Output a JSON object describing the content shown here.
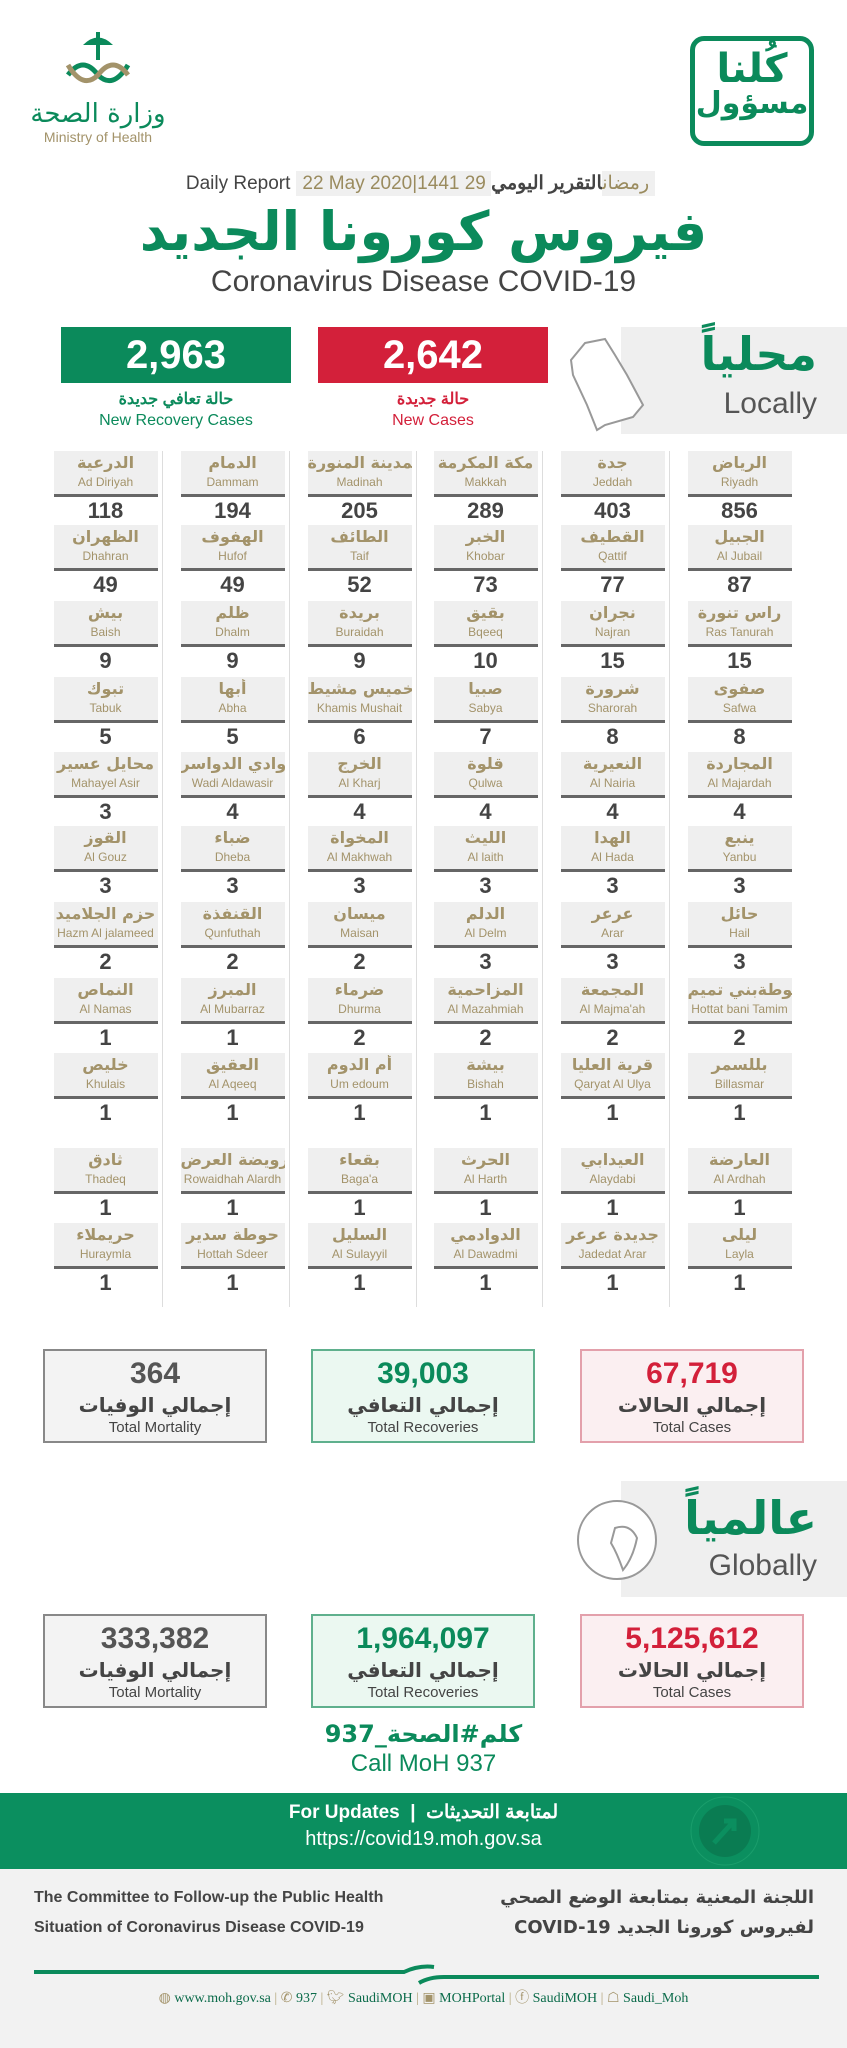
{
  "logos": {
    "moh_ar": "وزارة الصحة",
    "moh_en": "Ministry of Health",
    "kulna_1": "كُلنا",
    "kulna_2": "مسؤول"
  },
  "header": {
    "daily_en": "Daily Report",
    "date": "22 May 2020|1441 29 رمضان",
    "daily_ar": "التقرير اليومي",
    "title_ar": "فيروس كورونا الجديد",
    "title_en": "Coronavirus Disease COVID-19"
  },
  "local": {
    "label_ar": "محلياً",
    "label_en": "Locally",
    "new_recoveries": "2,963",
    "new_recoveries_ar": "حالة تعافي جديدة",
    "new_recoveries_en": "New Recovery Cases",
    "new_cases": "2,642",
    "new_cases_ar": "حالة جديدة",
    "new_cases_en": "New Cases",
    "rows": [
      [
        [
          "الرياض",
          "Riyadh",
          "856"
        ],
        [
          "جدة",
          "Jeddah",
          "403"
        ],
        [
          "مكة المكرمة",
          "Makkah",
          "289"
        ],
        [
          "المدينة المنورة",
          "Madinah",
          "205"
        ],
        [
          "الدمام",
          "Dammam",
          "194"
        ],
        [
          "الدرعية",
          "Ad Diriyah",
          "118"
        ]
      ],
      [
        [
          "الجبيل",
          "Al Jubail",
          "87"
        ],
        [
          "القطيف",
          "Qattif",
          "77"
        ],
        [
          "الخبر",
          "Khobar",
          "73"
        ],
        [
          "الطائف",
          "Taif",
          "52"
        ],
        [
          "الهفوف",
          "Hufof",
          "49"
        ],
        [
          "الظهران",
          "Dhahran",
          "49"
        ]
      ],
      [
        [
          "راس تنورة",
          "Ras Tanurah",
          "15"
        ],
        [
          "نجران",
          "Najran",
          "15"
        ],
        [
          "بقيق",
          "Bqeeq",
          "10"
        ],
        [
          "بريدة",
          "Buraidah",
          "9"
        ],
        [
          "ظلم",
          "Dhalm",
          "9"
        ],
        [
          "بيش",
          "Baish",
          "9"
        ]
      ],
      [
        [
          "صفوى",
          "Safwa",
          "8"
        ],
        [
          "شرورة",
          "Sharorah",
          "8"
        ],
        [
          "صبيا",
          "Sabya",
          "7"
        ],
        [
          "خميس مشيط",
          "Khamis Mushait",
          "6"
        ],
        [
          "أبها",
          "Abha",
          "5"
        ],
        [
          "تبوك",
          "Tabuk",
          "5"
        ]
      ],
      [
        [
          "المجاردة",
          "Al Majardah",
          "4"
        ],
        [
          "النعيرية",
          "Al Nairia",
          "4"
        ],
        [
          "قلوة",
          "Qulwa",
          "4"
        ],
        [
          "الخرج",
          "Al Kharj",
          "4"
        ],
        [
          "وادي الدواسر",
          "Wadi Aldawasir",
          "4"
        ],
        [
          "محايل عسير",
          "Mahayel Asir",
          "3"
        ]
      ],
      [
        [
          "ينبع",
          "Yanbu",
          "3"
        ],
        [
          "الهدا",
          "Al Hada",
          "3"
        ],
        [
          "الليث",
          "Al laith",
          "3"
        ],
        [
          "المخواة",
          "Al Makhwah",
          "3"
        ],
        [
          "ضباء",
          "Dheba",
          "3"
        ],
        [
          "القوز",
          "Al Gouz",
          "3"
        ]
      ],
      [
        [
          "حائل",
          "Hail",
          "3"
        ],
        [
          "عرعر",
          "Arar",
          "3"
        ],
        [
          "الدلم",
          "Al Delm",
          "3"
        ],
        [
          "ميسان",
          "Maisan",
          "2"
        ],
        [
          "القنفذة",
          "Qunfuthah",
          "2"
        ],
        [
          "حزم الجلاميد",
          "Hazm Al jalameed",
          "2"
        ]
      ],
      [
        [
          "حوطةبني تميم",
          "Hottat bani Tamim",
          "2"
        ],
        [
          "المجمعة",
          "Al Majma'ah",
          "2"
        ],
        [
          "المزاحمية",
          "Al Mazahmiah",
          "2"
        ],
        [
          "ضرماء",
          "Dhurma",
          "2"
        ],
        [
          "المبرز",
          "Al Mubarraz",
          "1"
        ],
        [
          "النماص",
          "Al Namas",
          "1"
        ]
      ],
      [
        [
          "بللسمر",
          "Billasmar",
          "1"
        ],
        [
          "قرية العليا",
          "Qaryat Al  Ulya",
          "1"
        ],
        [
          "بيشة",
          "Bishah",
          "1"
        ],
        [
          "أم الدوم",
          "Um edoum",
          "1"
        ],
        [
          "العقيق",
          "Al Aqeeq",
          "1"
        ],
        [
          "خليص",
          "Khulais",
          "1"
        ]
      ],
      [
        [
          "العارضة",
          "Al Ardhah",
          "1"
        ],
        [
          "العيدابي",
          "Alaydabi",
          "1"
        ],
        [
          "الحرث",
          "Al Harth",
          "1"
        ],
        [
          "بقعاء",
          "Baga'a",
          "1"
        ],
        [
          "رويضة العرض",
          "Rowaidhah Alardh",
          "1"
        ],
        [
          "ثادق",
          "Thadeq",
          "1"
        ]
      ],
      [
        [
          "ليلى",
          "Layla",
          "1"
        ],
        [
          "جديدة عرعر",
          "Jadedat Arar",
          "1"
        ],
        [
          "الدوادمي",
          "Al Dawadmi",
          "1"
        ],
        [
          "السليل",
          "Al Sulayyil",
          "1"
        ],
        [
          "حوطة سدير",
          "Hottah Sdeer",
          "1"
        ],
        [
          "حريملاء",
          "Huraymla",
          "1"
        ]
      ]
    ],
    "totals": {
      "mortality": "364",
      "recoveries": "39,003",
      "cases": "67,719"
    }
  },
  "global": {
    "label_ar": "عالمياً",
    "label_en": "Globally",
    "totals": {
      "mortality": "333,382",
      "recoveries": "1,964,097",
      "cases": "5,125,612"
    }
  },
  "labels": {
    "mortality_ar": "إجمالي الوفيات",
    "mortality_en": "Total Mortality",
    "recoveries_ar": "إجمالي التعافي",
    "recoveries_en": "Total Recoveries",
    "cases_ar": "إجمالي الحالات",
    "cases_en": "Total Cases"
  },
  "call": {
    "hashtag": "كلم#الصحة_937",
    "en": "Call MoH 937"
  },
  "footer": {
    "updates_en": "For Updates",
    "updates_ar": "لمتابعة التحديثات",
    "url": "https://covid19.moh.gov.sa",
    "committee_en_1": "The Committee to Follow-up the Public Health",
    "committee_en_2": "Situation of Coronavirus Disease COVID-19",
    "committee_ar_1": "اللجنة المعنية بمتابعة الوضع الصحي",
    "committee_ar_2": "لفيروس كورونا الجديد COVID-19",
    "social": [
      {
        "icon": "globe-icon",
        "label": "www.moh.gov.sa"
      },
      {
        "icon": "phone-icon",
        "label": "937"
      },
      {
        "icon": "twitter-icon",
        "label": "SaudiMOH"
      },
      {
        "icon": "youtube-icon",
        "label": "MOHPortal"
      },
      {
        "icon": "facebook-icon",
        "label": "SaudiMOH"
      },
      {
        "icon": "snapchat-icon",
        "label": "Saudi_Moh"
      }
    ]
  },
  "colors": {
    "green": "#0b8a5b",
    "red": "#d3203a",
    "gold": "#a3936a"
  }
}
